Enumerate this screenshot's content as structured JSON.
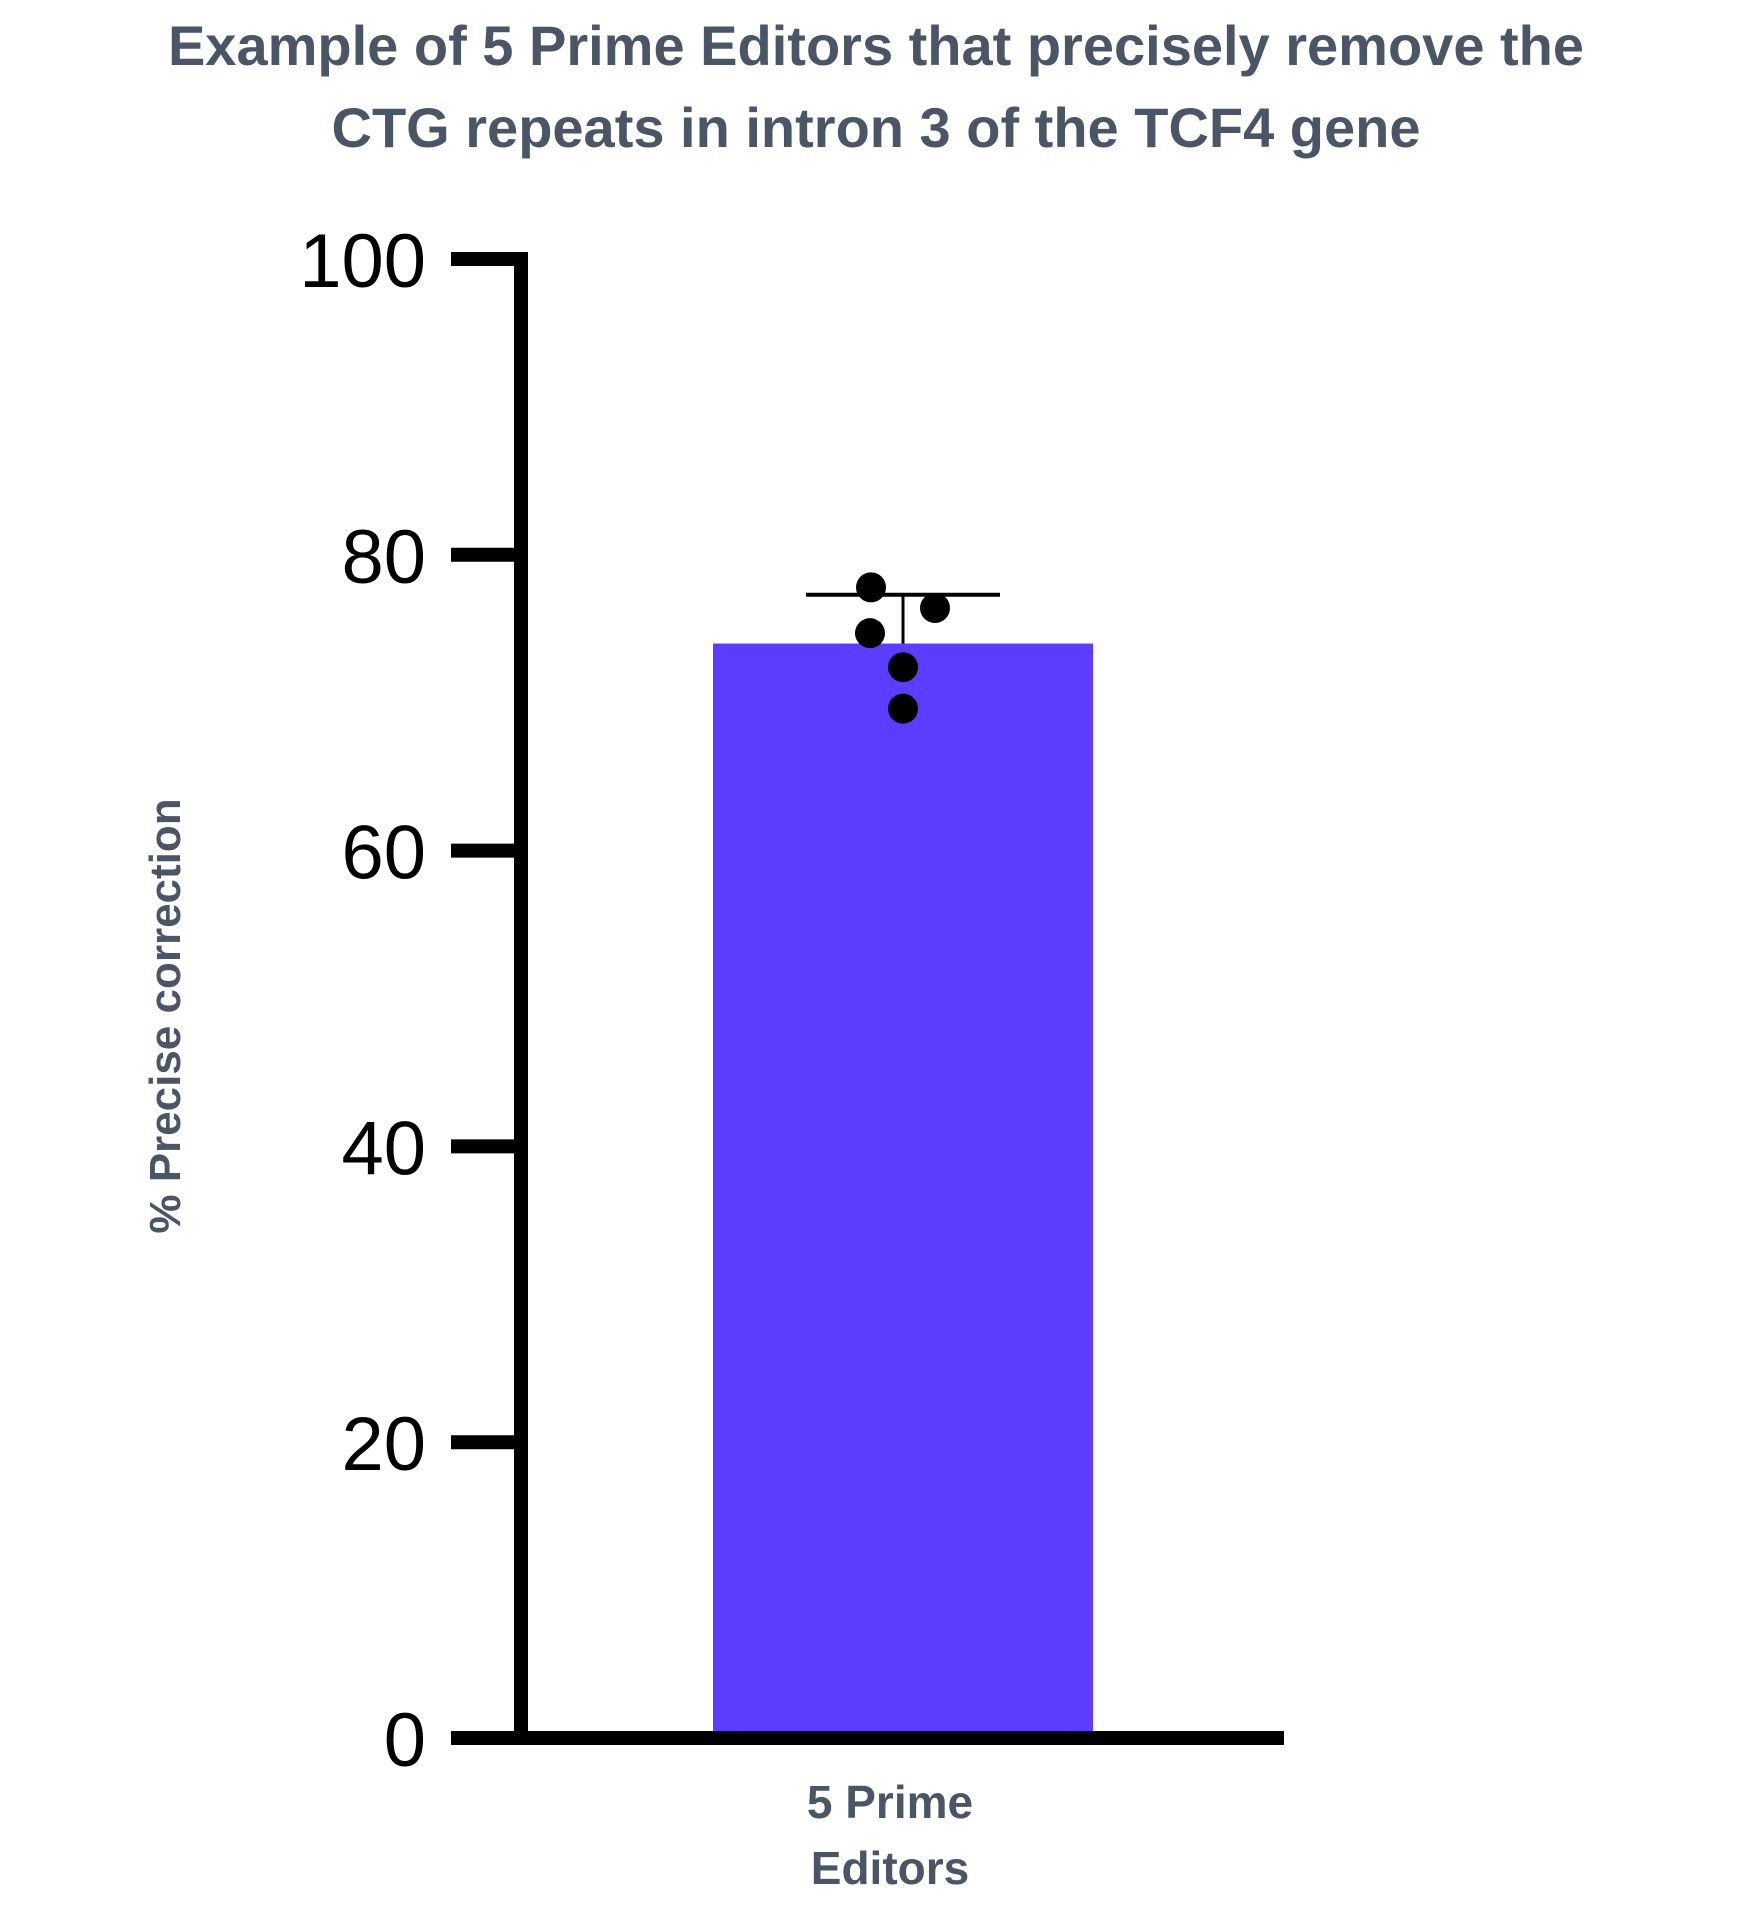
{
  "chart_data": {
    "type": "bar",
    "title_lines": [
      "Example of 5 Prime Editors that precisely remove the",
      "CTG repeats in intron 3 of the TCF4 gene"
    ],
    "ylabel": "% Precise correction",
    "ylim": [
      0,
      100
    ],
    "yticks": [
      0,
      20,
      40,
      60,
      80,
      100
    ],
    "categories": [
      {
        "lines": [
          "5 Prime",
          "Editors"
        ]
      }
    ],
    "values": [
      74
    ],
    "error_upper": [
      77.3
    ],
    "points": [
      77.8,
      76.4,
      74.7,
      72.4,
      69.6
    ],
    "legend": "none",
    "grid": false,
    "colors": {
      "bar": "#5a3dff",
      "axis": "#000000",
      "points": "#000000",
      "text": "#4a5566"
    }
  }
}
